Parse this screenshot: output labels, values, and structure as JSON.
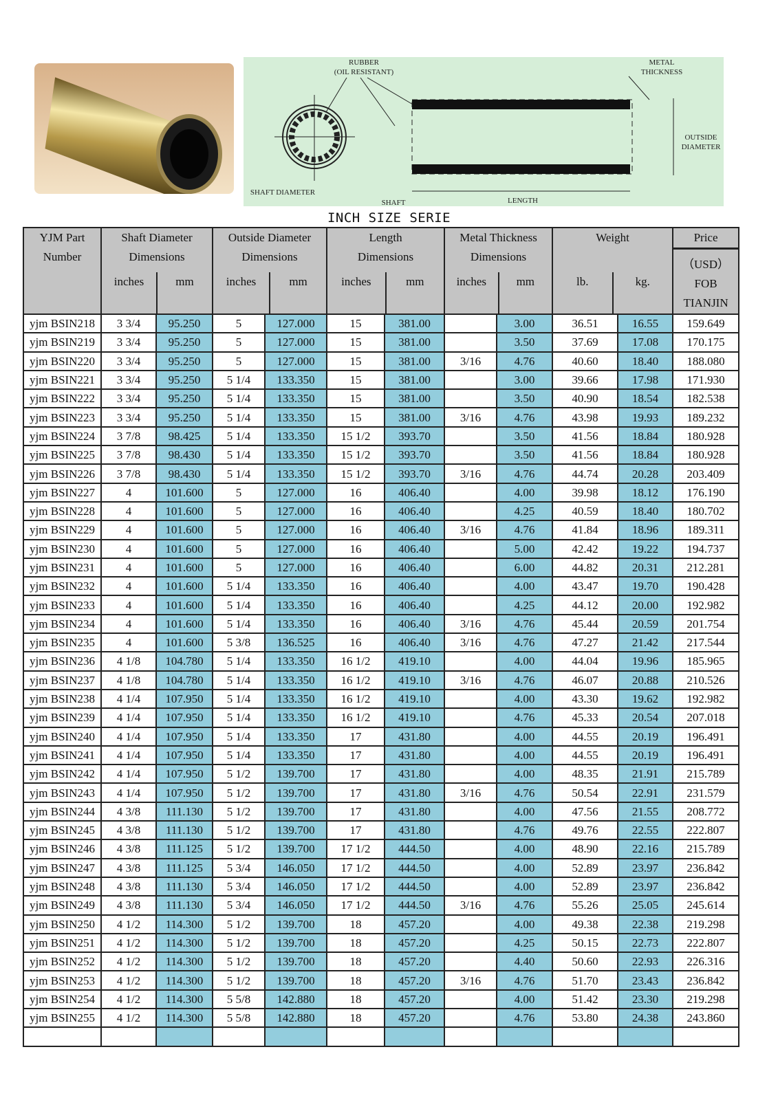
{
  "diagram": {
    "rubber_label": "RUBBER",
    "rubber_sub": "(OIL RESISTANT)",
    "metal_label": "METAL",
    "metal_sub": "THICKNESS",
    "outside_label": "OUTSIDE",
    "outside_sub": "DIAMETER",
    "shaft_diameter_label": "SHAFT DIAMETER",
    "shaft_label": "SHAFT",
    "length_label": "LENGTH"
  },
  "title": "INCH SIZE SERIE",
  "header": {
    "part": [
      "YJM Part",
      "Number"
    ],
    "shaft": [
      "Shaft  Diameter",
      "Dimensions"
    ],
    "outside": [
      "Outside Diameter",
      "Dimensions"
    ],
    "length": [
      "Length",
      "Dimensions"
    ],
    "metal": [
      "Metal Thickness",
      "Dimensions"
    ],
    "weight": "Weight",
    "price": [
      "Price",
      "（USD）",
      "FOB",
      "TIANJIN"
    ],
    "inches": "inches",
    "mm": "mm",
    "lb": "lb.",
    "kg": "kg."
  },
  "colors": {
    "highlight": "#93cddd",
    "header_bg": "#c4c4c4",
    "diagram_bg": "#d6eed8"
  },
  "rows": [
    [
      "yjm BSIN218",
      "3 3/4",
      "95.250",
      "5",
      "127.000",
      "15",
      "381.00",
      "",
      "3.00",
      "36.51",
      "16.55",
      "159.649"
    ],
    [
      "yjm BSIN219",
      "3 3/4",
      "95.250",
      "5",
      "127.000",
      "15",
      "381.00",
      "",
      "3.50",
      "37.69",
      "17.08",
      "170.175"
    ],
    [
      "yjm BSIN220",
      "3 3/4",
      "95.250",
      "5",
      "127.000",
      "15",
      "381.00",
      "3/16",
      "4.76",
      "40.60",
      "18.40",
      "188.080"
    ],
    [
      "yjm BSIN221",
      "3 3/4",
      "95.250",
      "5 1/4",
      "133.350",
      "15",
      "381.00",
      "",
      "3.00",
      "39.66",
      "17.98",
      "171.930"
    ],
    [
      "yjm BSIN222",
      "3 3/4",
      "95.250",
      "5 1/4",
      "133.350",
      "15",
      "381.00",
      "",
      "3.50",
      "40.90",
      "18.54",
      "182.538"
    ],
    [
      "yjm BSIN223",
      "3 3/4",
      "95.250",
      "5 1/4",
      "133.350",
      "15",
      "381.00",
      "3/16",
      "4.76",
      "43.98",
      "19.93",
      "189.232"
    ],
    [
      "yjm BSIN224",
      "3 7/8",
      "98.425",
      "5 1/4",
      "133.350",
      "15 1/2",
      "393.70",
      "",
      "3.50",
      "41.56",
      "18.84",
      "180.928"
    ],
    [
      "yjm BSIN225",
      "3 7/8",
      "98.430",
      "5 1/4",
      "133.350",
      "15 1/2",
      "393.70",
      "",
      "3.50",
      "41.56",
      "18.84",
      "180.928"
    ],
    [
      "yjm BSIN226",
      "3 7/8",
      "98.430",
      "5 1/4",
      "133.350",
      "15 1/2",
      "393.70",
      "3/16",
      "4.76",
      "44.74",
      "20.28",
      "203.409"
    ],
    [
      "yjm BSIN227",
      "4",
      "101.600",
      "5",
      "127.000",
      "16",
      "406.40",
      "",
      "4.00",
      "39.98",
      "18.12",
      "176.190"
    ],
    [
      "yjm BSIN228",
      "4",
      "101.600",
      "5",
      "127.000",
      "16",
      "406.40",
      "",
      "4.25",
      "40.59",
      "18.40",
      "180.702"
    ],
    [
      "yjm BSIN229",
      "4",
      "101.600",
      "5",
      "127.000",
      "16",
      "406.40",
      "3/16",
      "4.76",
      "41.84",
      "18.96",
      "189.311"
    ],
    [
      "yjm BSIN230",
      "4",
      "101.600",
      "5",
      "127.000",
      "16",
      "406.40",
      "",
      "5.00",
      "42.42",
      "19.22",
      "194.737"
    ],
    [
      "yjm BSIN231",
      "4",
      "101.600",
      "5",
      "127.000",
      "16",
      "406.40",
      "",
      "6.00",
      "44.82",
      "20.31",
      "212.281"
    ],
    [
      "yjm BSIN232",
      "4",
      "101.600",
      "5 1/4",
      "133.350",
      "16",
      "406.40",
      "",
      "4.00",
      "43.47",
      "19.70",
      "190.428"
    ],
    [
      "yjm BSIN233",
      "4",
      "101.600",
      "5 1/4",
      "133.350",
      "16",
      "406.40",
      "",
      "4.25",
      "44.12",
      "20.00",
      "192.982"
    ],
    [
      "yjm BSIN234",
      "4",
      "101.600",
      "5 1/4",
      "133.350",
      "16",
      "406.40",
      "3/16",
      "4.76",
      "45.44",
      "20.59",
      "201.754"
    ],
    [
      "yjm BSIN235",
      "4",
      "101.600",
      "5 3/8",
      "136.525",
      "16",
      "406.40",
      "3/16",
      "4.76",
      "47.27",
      "21.42",
      "217.544"
    ],
    [
      "yjm BSIN236",
      "4 1/8",
      "104.780",
      "5 1/4",
      "133.350",
      "16 1/2",
      "419.10",
      "",
      "4.00",
      "44.04",
      "19.96",
      "185.965"
    ],
    [
      "yjm BSIN237",
      "4 1/8",
      "104.780",
      "5 1/4",
      "133.350",
      "16 1/2",
      "419.10",
      "3/16",
      "4.76",
      "46.07",
      "20.88",
      "210.526"
    ],
    [
      "yjm BSIN238",
      "4 1/4",
      "107.950",
      "5 1/4",
      "133.350",
      "16 1/2",
      "419.10",
      "",
      "4.00",
      "43.30",
      "19.62",
      "192.982"
    ],
    [
      "yjm BSIN239",
      "4 1/4",
      "107.950",
      "5 1/4",
      "133.350",
      "16 1/2",
      "419.10",
      "",
      "4.76",
      "45.33",
      "20.54",
      "207.018"
    ],
    [
      "yjm BSIN240",
      "4 1/4",
      "107.950",
      "5 1/4",
      "133.350",
      "17",
      "431.80",
      "",
      "4.00",
      "44.55",
      "20.19",
      "196.491"
    ],
    [
      "yjm BSIN241",
      "4 1/4",
      "107.950",
      "5 1/4",
      "133.350",
      "17",
      "431.80",
      "",
      "4.00",
      "44.55",
      "20.19",
      "196.491"
    ],
    [
      "yjm BSIN242",
      "4 1/4",
      "107.950",
      "5 1/2",
      "139.700",
      "17",
      "431.80",
      "",
      "4.00",
      "48.35",
      "21.91",
      "215.789"
    ],
    [
      "yjm BSIN243",
      "4 1/4",
      "107.950",
      "5 1/2",
      "139.700",
      "17",
      "431.80",
      "3/16",
      "4.76",
      "50.54",
      "22.91",
      "231.579"
    ],
    [
      "yjm BSIN244",
      "4 3/8",
      "111.130",
      "5 1/2",
      "139.700",
      "17",
      "431.80",
      "",
      "4.00",
      "47.56",
      "21.55",
      "208.772"
    ],
    [
      "yjm BSIN245",
      "4 3/8",
      "111.130",
      "5 1/2",
      "139.700",
      "17",
      "431.80",
      "",
      "4.76",
      "49.76",
      "22.55",
      "222.807"
    ],
    [
      "yjm BSIN246",
      "4 3/8",
      "111.125",
      "5 1/2",
      "139.700",
      "17 1/2",
      "444.50",
      "",
      "4.00",
      "48.90",
      "22.16",
      "215.789"
    ],
    [
      "yjm BSIN247",
      "4 3/8",
      "111.125",
      "5 3/4",
      "146.050",
      "17 1/2",
      "444.50",
      "",
      "4.00",
      "52.89",
      "23.97",
      "236.842"
    ],
    [
      "yjm BSIN248",
      "4 3/8",
      "111.130",
      "5 3/4",
      "146.050",
      "17 1/2",
      "444.50",
      "",
      "4.00",
      "52.89",
      "23.97",
      "236.842"
    ],
    [
      "yjm BSIN249",
      "4 3/8",
      "111.130",
      "5 3/4",
      "146.050",
      "17 1/2",
      "444.50",
      "3/16",
      "4.76",
      "55.26",
      "25.05",
      "245.614"
    ],
    [
      "yjm BSIN250",
      "4 1/2",
      "114.300",
      "5 1/2",
      "139.700",
      "18",
      "457.20",
      "",
      "4.00",
      "49.38",
      "22.38",
      "219.298"
    ],
    [
      "yjm BSIN251",
      "4 1/2",
      "114.300",
      "5 1/2",
      "139.700",
      "18",
      "457.20",
      "",
      "4.25",
      "50.15",
      "22.73",
      "222.807"
    ],
    [
      "yjm BSIN252",
      "4 1/2",
      "114.300",
      "5 1/2",
      "139.700",
      "18",
      "457.20",
      "",
      "4.40",
      "50.60",
      "22.93",
      "226.316"
    ],
    [
      "yjm BSIN253",
      "4 1/2",
      "114.300",
      "5 1/2",
      "139.700",
      "18",
      "457.20",
      "3/16",
      "4.76",
      "51.70",
      "23.43",
      "236.842"
    ],
    [
      "yjm BSIN254",
      "4 1/2",
      "114.300",
      "5 5/8",
      "142.880",
      "18",
      "457.20",
      "",
      "4.00",
      "51.42",
      "23.30",
      "219.298"
    ],
    [
      "yjm BSIN255",
      "4 1/2",
      "114.300",
      "5 5/8",
      "142.880",
      "18",
      "457.20",
      "",
      "4.76",
      "53.80",
      "24.38",
      "243.860"
    ]
  ]
}
